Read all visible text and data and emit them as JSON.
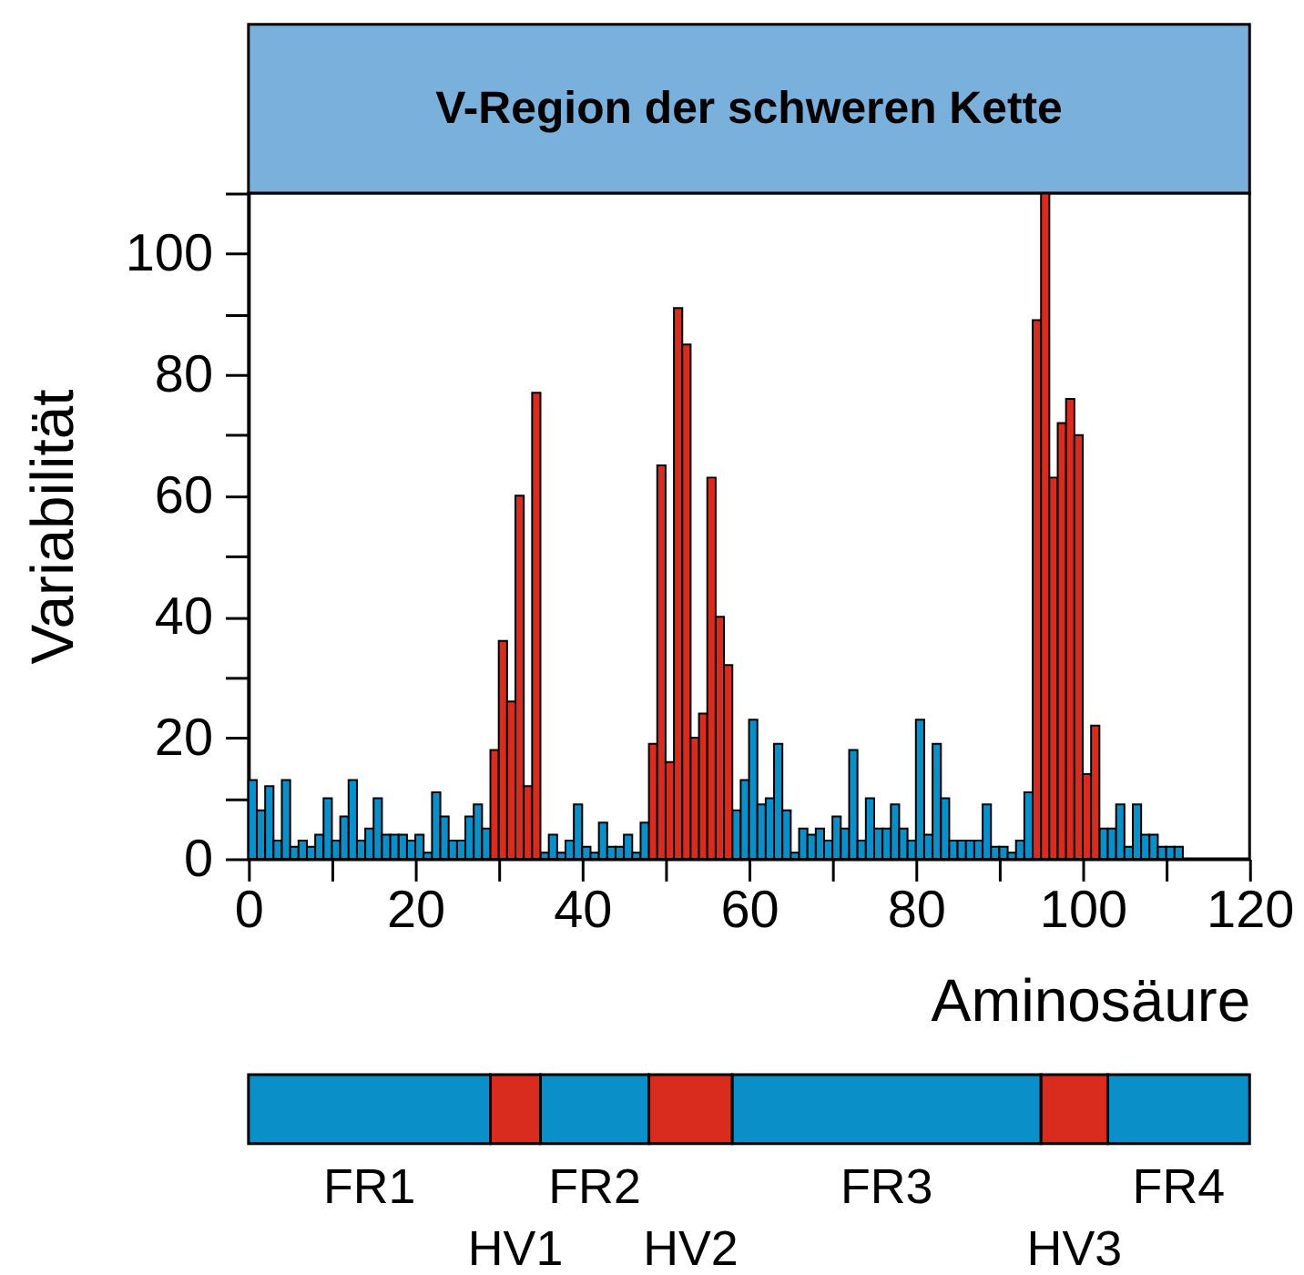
{
  "chart_data": [
    {
      "type": "histogram",
      "title": "V-Region der schweren Kette",
      "xlabel": "Aminosäure",
      "ylabel": "Variabilität",
      "bins": [
        0,
        1,
        2,
        3,
        4,
        5,
        6,
        7,
        8,
        9,
        10,
        11,
        12,
        13,
        14,
        15,
        16,
        17,
        18,
        19,
        20,
        21,
        22,
        23,
        24,
        25,
        26,
        27,
        28,
        29,
        30,
        31,
        32,
        33,
        34,
        35,
        36,
        37,
        38,
        39,
        40,
        41,
        42,
        43,
        44,
        45,
        46,
        47,
        48,
        49,
        50,
        51,
        52,
        53,
        54,
        55,
        56,
        57,
        58,
        59,
        60,
        61,
        62,
        63,
        64,
        65,
        66,
        67,
        68,
        69,
        70,
        71,
        72,
        73,
        74,
        75,
        76,
        77,
        78,
        79,
        80,
        81,
        82,
        83,
        84,
        85,
        86,
        87,
        88,
        89,
        90,
        91,
        92,
        93,
        94,
        95,
        96,
        97,
        98,
        99,
        100,
        101,
        102,
        103,
        104,
        105,
        106,
        107,
        108,
        109,
        110,
        111,
        112
      ],
      "series": [
        {
          "color": "#0a8fc8",
          "values": [
            13,
            8,
            12,
            3,
            13,
            2,
            3,
            2,
            4,
            10,
            3,
            7,
            13,
            3,
            5,
            10,
            4,
            4,
            4,
            3,
            4,
            1,
            11,
            7,
            3,
            3,
            7,
            9,
            5,
            null,
            null,
            null,
            null,
            null,
            null,
            1,
            4,
            1,
            3,
            9,
            2,
            1,
            6,
            2,
            2,
            4,
            1,
            6,
            null,
            null,
            null,
            null,
            null,
            null,
            null,
            null,
            null,
            null,
            8,
            13,
            23,
            9,
            10,
            19,
            8,
            1,
            5,
            4,
            5,
            3,
            7,
            5,
            18,
            3,
            10,
            5,
            5,
            9,
            5,
            3,
            23,
            4,
            19,
            10,
            3,
            3,
            3,
            3,
            9,
            2,
            2,
            1,
            3,
            11,
            null,
            null,
            null,
            null,
            null,
            null,
            null,
            null,
            5,
            5,
            9,
            2,
            9,
            4,
            4,
            2,
            2,
            2
          ]
        },
        {
          "color": "#d92b1e",
          "values": [
            null,
            null,
            null,
            null,
            null,
            null,
            null,
            null,
            null,
            null,
            null,
            null,
            null,
            null,
            null,
            null,
            null,
            null,
            null,
            null,
            null,
            null,
            null,
            null,
            null,
            null,
            null,
            null,
            null,
            18,
            36,
            26,
            60,
            12,
            77,
            null,
            null,
            null,
            null,
            null,
            null,
            null,
            null,
            null,
            null,
            null,
            null,
            null,
            19,
            65,
            16,
            91,
            85,
            20,
            24,
            63,
            40,
            32,
            null,
            null,
            null,
            null,
            null,
            null,
            null,
            null,
            null,
            null,
            null,
            null,
            null,
            null,
            null,
            null,
            null,
            null,
            null,
            null,
            null,
            null,
            null,
            null,
            null,
            null,
            null,
            null,
            null,
            null,
            null,
            null,
            null,
            null,
            null,
            null,
            89,
            110,
            63,
            72,
            76,
            70,
            14,
            22,
            null,
            null,
            null,
            null,
            null,
            null,
            null,
            null,
            null,
            null
          ]
        }
      ],
      "xlim": [
        0,
        120
      ],
      "xticks": [
        0,
        {
          "value": 10,
          "label": null
        },
        20,
        {
          "value": 30,
          "label": null
        },
        40,
        {
          "value": 50,
          "label": null
        },
        60,
        {
          "value": 70,
          "label": null
        },
        80,
        {
          "value": 90,
          "label": null
        },
        100,
        {
          "value": 110,
          "label": null
        },
        120
      ],
      "ylim": [
        0,
        110
      ],
      "yticks": [
        0,
        {
          "value": 10,
          "label": null
        },
        20,
        {
          "value": 30,
          "label": null
        },
        40,
        {
          "value": 50,
          "label": null
        },
        60,
        {
          "value": 70,
          "label": null
        },
        80,
        {
          "value": 90,
          "label": null
        },
        100,
        {
          "value": 110,
          "label": null
        }
      ]
    },
    {
      "type": "bar",
      "orientation": "horizontal",
      "stacked": true,
      "categories": [
        null
      ],
      "xlim": [
        0,
        120
      ],
      "tick_labels": false,
      "series": [
        {
          "name": "FR1",
          "color": "#0a8fc8",
          "values": [
            29
          ]
        },
        {
          "name": "HV1",
          "color": "#d92b1e",
          "values": [
            6
          ]
        },
        {
          "name": "FR2",
          "color": "#0a8fc8",
          "values": [
            13
          ]
        },
        {
          "name": "HV2",
          "color": "#d92b1e",
          "values": [
            10
          ]
        },
        {
          "name": "FR3",
          "color": "#0a8fc8",
          "values": [
            37
          ]
        },
        {
          "name": "HV3",
          "color": "#d92b1e",
          "values": [
            8
          ]
        },
        {
          "name": "FR4",
          "color": "#0a8fc8",
          "values": [
            17
          ]
        }
      ]
    }
  ]
}
